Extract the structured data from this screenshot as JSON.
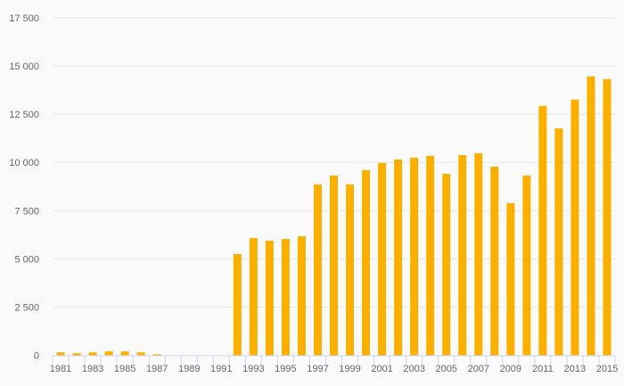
{
  "chart_data": {
    "type": "bar",
    "title": "",
    "xlabel": "",
    "ylabel": "",
    "ylim": [
      0,
      17500
    ],
    "grid": true,
    "legend": "none",
    "bar_color": "#fbb000",
    "yticks": [
      0,
      2500,
      5000,
      7500,
      10000,
      12500,
      15000,
      17500
    ],
    "ytick_labels": [
      "0",
      "2 500",
      "5 000",
      "7 500",
      "10 000",
      "12 500",
      "15 000",
      "17 500"
    ],
    "categories": [
      "1981",
      "1982",
      "1983",
      "1984",
      "1985",
      "1986",
      "1987",
      "1988",
      "1989",
      "1990",
      "1991",
      "1992",
      "1993",
      "1994",
      "1995",
      "1996",
      "1997",
      "1998",
      "1999",
      "2000",
      "2001",
      "2002",
      "2003",
      "2004",
      "2005",
      "2006",
      "2007",
      "2008",
      "2009",
      "2010",
      "2011",
      "2012",
      "2013",
      "2014",
      "2015"
    ],
    "xtick_labels": [
      "1981",
      "1983",
      "1985",
      "1987",
      "1989",
      "1991",
      "1993",
      "1995",
      "1997",
      "1999",
      "2001",
      "2003",
      "2005",
      "2007",
      "2009",
      "2011",
      "2013",
      "2015"
    ],
    "values": [
      150,
      100,
      150,
      200,
      200,
      150,
      50,
      0,
      0,
      0,
      0,
      5250,
      6080,
      5940,
      6030,
      6170,
      8860,
      9320,
      8860,
      9600,
      9970,
      10150,
      10250,
      10340,
      9410,
      10380,
      10480,
      9780,
      7890,
      9320,
      12930,
      11770,
      13260,
      14460,
      14320
    ]
  }
}
